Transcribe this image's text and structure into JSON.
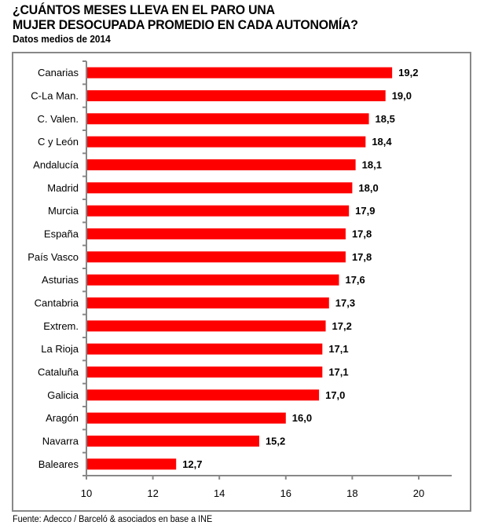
{
  "chart_data": {
    "type": "bar",
    "orientation": "horizontal",
    "title": "¿CUÁNTOS MESES LLEVA EN EL PARO UNA MUJER DESOCUPADA PROMEDIO EN CADA AUTONOMÍA?",
    "title_lines": [
      "¿CUÁNTOS MESES LLEVA EN EL PARO UNA",
      "MUJER DESOCUPADA PROMEDIO EN CADA AUTONOMÍA?"
    ],
    "subtitle": "Datos medios de 2014",
    "xlabel": "",
    "ylabel": "",
    "categories": [
      "Canarias",
      "C-La Man.",
      "C. Valen.",
      "C y León",
      "Andalucía",
      "Madrid",
      "Murcia",
      "España",
      "País Vasco",
      "Asturias",
      "Cantabria",
      "Extrem.",
      "La Rioja",
      "Cataluña",
      "Galicia",
      "Aragón",
      "Navarra",
      "Baleares"
    ],
    "values": [
      19.2,
      19.0,
      18.5,
      18.4,
      18.1,
      18.0,
      17.9,
      17.8,
      17.8,
      17.6,
      17.3,
      17.2,
      17.1,
      17.1,
      17.0,
      16.0,
      15.2,
      12.7
    ],
    "value_labels": [
      "19,2",
      "19,0",
      "18,5",
      "18,4",
      "18,1",
      "18,0",
      "17,9",
      "17,8",
      "17,8",
      "17,6",
      "17,3",
      "17,2",
      "17,1",
      "17,1",
      "17,0",
      "16,0",
      "15,2",
      "12,7"
    ],
    "xlim": [
      10,
      21
    ],
    "xticks": [
      10,
      12,
      14,
      16,
      18,
      20
    ],
    "xtick_labels": [
      "10",
      "12",
      "14",
      "16",
      "18",
      "20"
    ],
    "grid": false,
    "legend": "none",
    "bar_color": "#ff0000",
    "axis_color": "#888888"
  },
  "source": "Fuente: Adecco / Barceló & asociados en base a INE"
}
